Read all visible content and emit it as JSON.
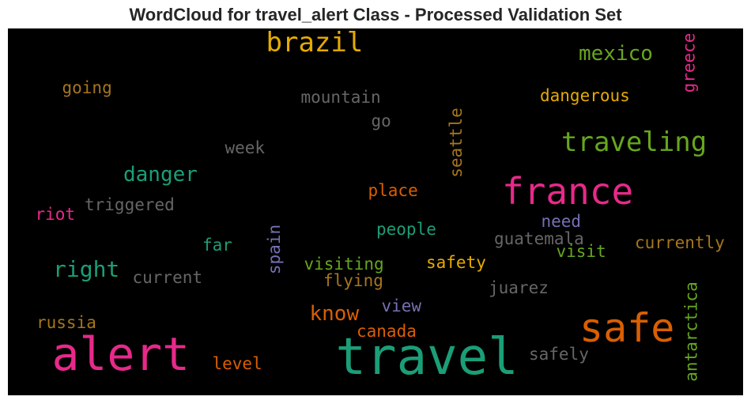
{
  "chart_data": {
    "type": "wordcloud",
    "title": "WordCloud for travel_alert Class - Processed Validation Set",
    "background": "#000000",
    "words": [
      {
        "text": "travel",
        "color": "#1b9e77"
      },
      {
        "text": "alert",
        "color": "#e7298a"
      },
      {
        "text": "safe",
        "color": "#d95f02"
      },
      {
        "text": "france",
        "color": "#e7298a"
      },
      {
        "text": "brazil",
        "color": "#e6ab02"
      },
      {
        "text": "traveling",
        "color": "#66a61e"
      },
      {
        "text": "mexico",
        "color": "#66a61e"
      },
      {
        "text": "danger",
        "color": "#1b9e77"
      },
      {
        "text": "right",
        "color": "#1b9e77"
      },
      {
        "text": "know",
        "color": "#d95f02"
      },
      {
        "text": "dangerous",
        "color": "#e6ab02"
      },
      {
        "text": "mountain",
        "color": "#666666"
      },
      {
        "text": "going",
        "color": "#a6761d"
      },
      {
        "text": "greece",
        "color": "#e7298a"
      },
      {
        "text": "go",
        "color": "#666666"
      },
      {
        "text": "seattle",
        "color": "#a6761d"
      },
      {
        "text": "week",
        "color": "#666666"
      },
      {
        "text": "triggered",
        "color": "#666666"
      },
      {
        "text": "riot",
        "color": "#e7298a"
      },
      {
        "text": "place",
        "color": "#d95f02"
      },
      {
        "text": "need",
        "color": "#7570b3"
      },
      {
        "text": "people",
        "color": "#1b9e77"
      },
      {
        "text": "guatemala",
        "color": "#666666"
      },
      {
        "text": "currently",
        "color": "#a6761d"
      },
      {
        "text": "visit",
        "color": "#66a61e"
      },
      {
        "text": "far",
        "color": "#1b9e77"
      },
      {
        "text": "spain",
        "color": "#7570b3"
      },
      {
        "text": "visiting",
        "color": "#66a61e"
      },
      {
        "text": "safety",
        "color": "#e6ab02"
      },
      {
        "text": "flying",
        "color": "#a6761d"
      },
      {
        "text": "current",
        "color": "#666666"
      },
      {
        "text": "juarez",
        "color": "#666666"
      },
      {
        "text": "view",
        "color": "#7570b3"
      },
      {
        "text": "russia",
        "color": "#a6761d"
      },
      {
        "text": "canada",
        "color": "#d95f02"
      },
      {
        "text": "antarctica",
        "color": "#66a61e"
      },
      {
        "text": "safely",
        "color": "#666666"
      },
      {
        "text": "level",
        "color": "#d95f02"
      }
    ]
  }
}
